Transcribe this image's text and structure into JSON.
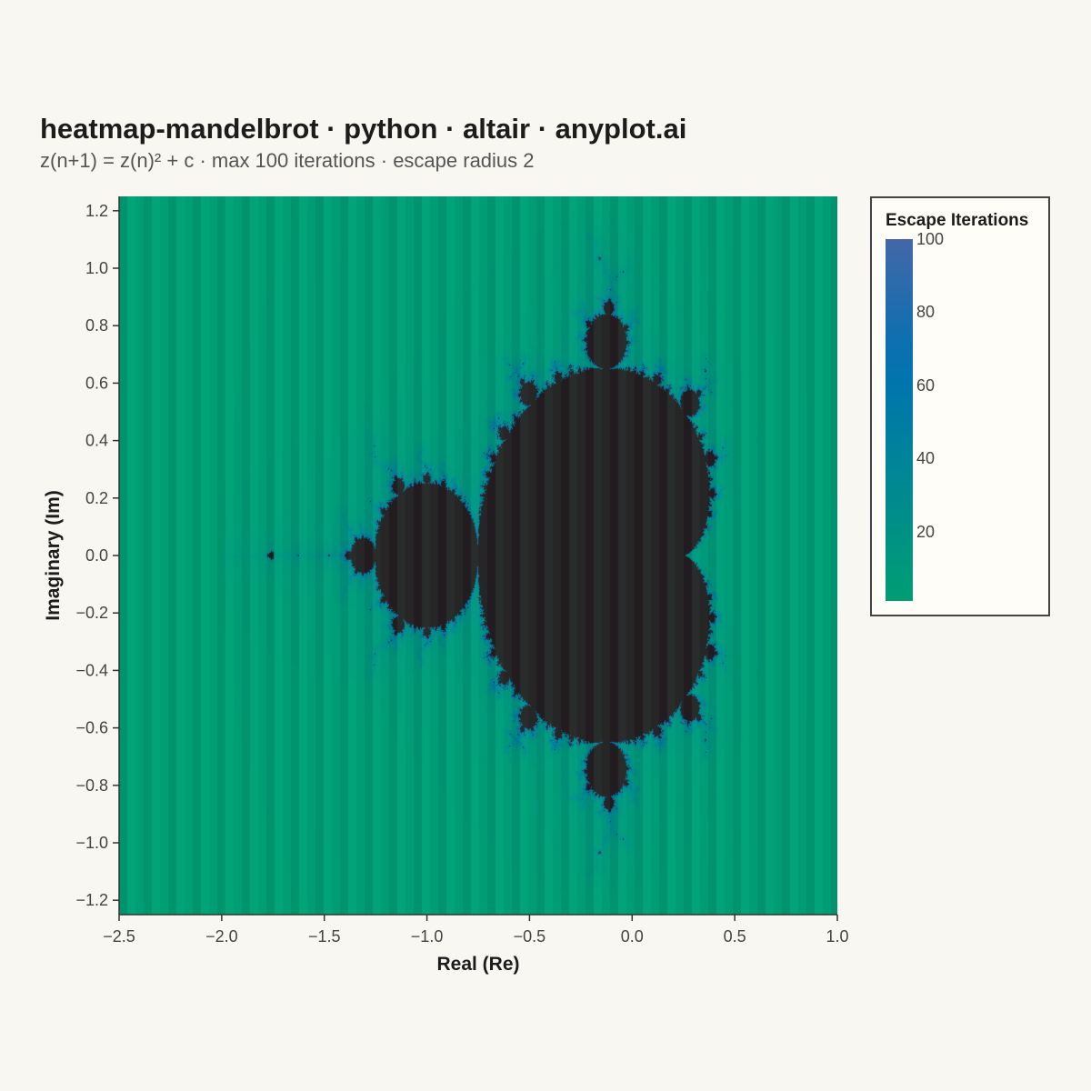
{
  "title": "heatmap-mandelbrot · python · altair · anyplot.ai",
  "subtitle": "z(n+1) = z(n)² + c · max 100 iterations · escape radius 2",
  "chart_data": {
    "type": "heatmap",
    "function": "z(n+1) = z(n)² + c",
    "max_iterations": 100,
    "escape_radius": 2,
    "xlabel": "Real (Re)",
    "ylabel": "Imaginary (Im)",
    "xlim": [
      -2.5,
      1.0
    ],
    "ylim": [
      -1.25,
      1.25
    ],
    "xticks": [
      -2.5,
      -2.0,
      -1.5,
      -1.0,
      -0.5,
      0.0,
      0.5,
      1.0
    ],
    "xtick_labels": [
      "−2.5",
      "−2.0",
      "−1.5",
      "−1.0",
      "−0.5",
      "0.0",
      "0.5",
      "1.0"
    ],
    "yticks": [
      1.2,
      1.0,
      0.8,
      0.6,
      0.4,
      0.2,
      0.0,
      -0.2,
      -0.4,
      -0.6,
      -0.8,
      -1.0,
      -1.2
    ],
    "ytick_labels": [
      "1.2",
      "1.0",
      "0.8",
      "0.6",
      "0.4",
      "0.2",
      "0.0",
      "−0.2",
      "−0.4",
      "−0.6",
      "−0.8",
      "−1.0",
      "−1.2"
    ],
    "legend": {
      "title": "Escape Iterations",
      "ticks": [
        100,
        80,
        60,
        40,
        20
      ],
      "tick_labels": [
        "100",
        "80",
        "60",
        "40",
        "20"
      ],
      "domain": [
        1,
        100
      ],
      "position": "right"
    },
    "colors": {
      "low": "#009e73",
      "mid": "#0072b2",
      "high": "#4467a8",
      "inside_set": "#262626"
    }
  }
}
